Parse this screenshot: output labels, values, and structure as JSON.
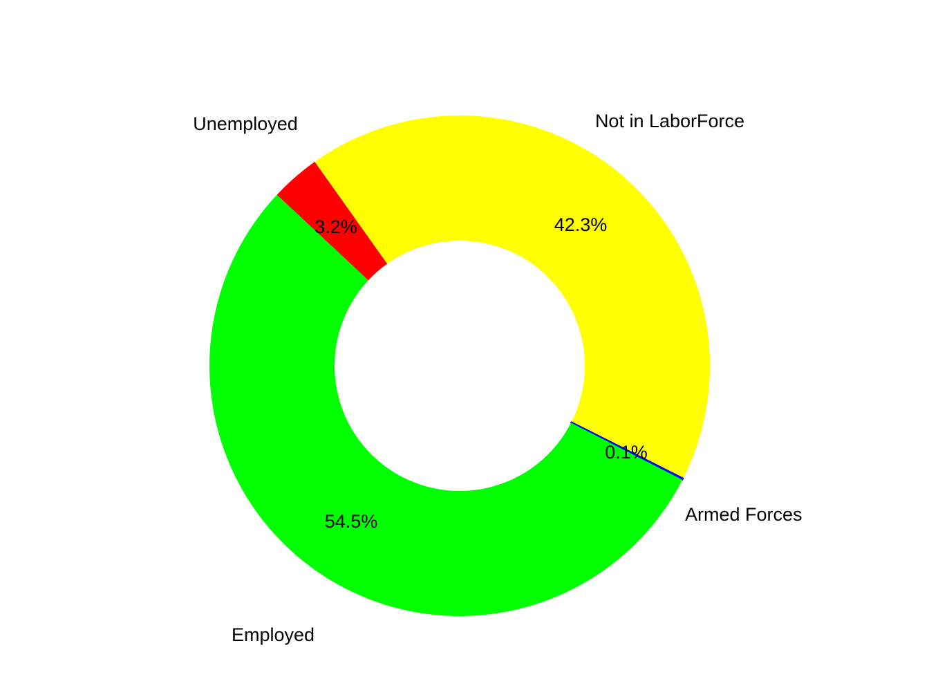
{
  "chart_data": {
    "type": "pie",
    "subtype": "donut",
    "title": "",
    "categories": [
      "Not in LaborForce",
      "Armed Forces",
      "Employed",
      "Unemployed"
    ],
    "values": [
      42.3,
      0.1,
      54.5,
      3.2
    ],
    "percent_labels": [
      "42.3%",
      "0.1%",
      "54.5%",
      "3.2%"
    ],
    "colors": [
      "#ffff00",
      "#0000ff",
      "#00ff00",
      "#ff0000"
    ],
    "start_angle_deg_clockwise_from_top": 324.6,
    "direction": "clockwise",
    "legend": "none",
    "center": [
      665,
      529
    ],
    "outer_radius": 362,
    "inner_radius": 181
  }
}
